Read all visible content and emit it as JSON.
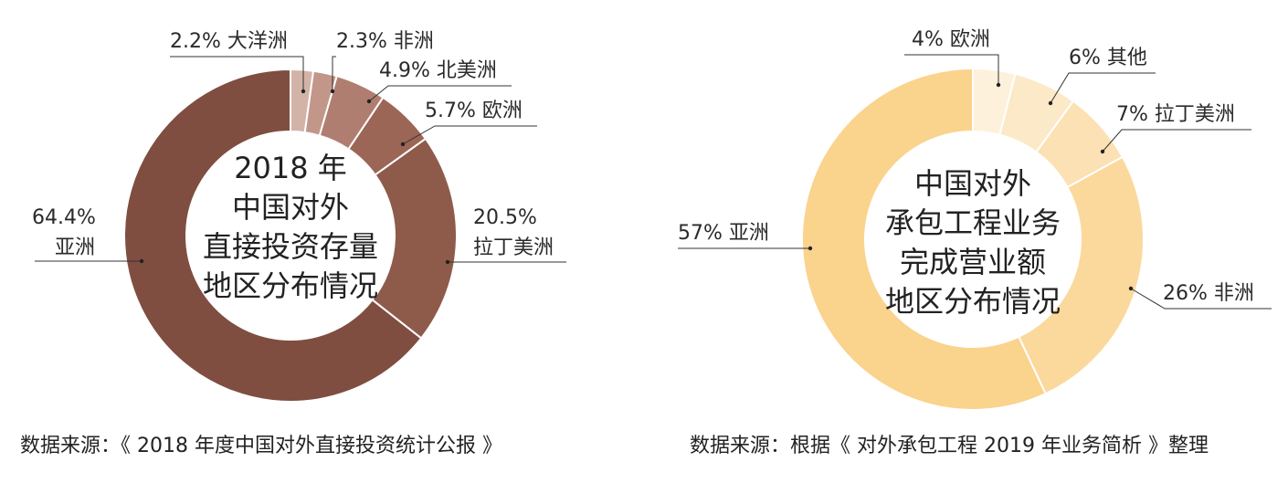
{
  "chart_data": [
    {
      "type": "pie",
      "donut": true,
      "title_lines": [
        "2018 年",
        "中国对外",
        "直接投资存量",
        "地区分布情况"
      ],
      "slices": [
        {
          "name": "大洋洲",
          "value": 2.2,
          "label": "2.2%",
          "color": "#d3b3a8"
        },
        {
          "name": "非洲",
          "value": 2.3,
          "label": "2.3%",
          "color": "#c2978a"
        },
        {
          "name": "北美洲",
          "value": 4.9,
          "label": "4.9%",
          "color": "#b07e70"
        },
        {
          "name": "欧洲",
          "value": 5.7,
          "label": "5.7%",
          "color": "#9c6656"
        },
        {
          "name": "拉丁美洲",
          "value": 20.5,
          "label": "20.5%",
          "color": "#8e5b4b"
        },
        {
          "name": "亚洲",
          "value": 64.4,
          "label": "64.4%",
          "color": "#7f4e40"
        }
      ],
      "source": "数据来源：《 2018 年度中国对外直接投资统计公报 》"
    },
    {
      "type": "pie",
      "donut": true,
      "title_lines": [
        "中国对外",
        "承包工程业务",
        "完成营业额",
        "地区分布情况"
      ],
      "slices": [
        {
          "name": "欧洲",
          "value": 4,
          "label": "4%",
          "color": "#fdf1db"
        },
        {
          "name": "其他",
          "value": 6,
          "label": "6%",
          "color": "#fce9c7"
        },
        {
          "name": "拉丁美洲",
          "value": 7,
          "label": "7%",
          "color": "#fbe1b3"
        },
        {
          "name": "非洲",
          "value": 26,
          "label": "26%",
          "color": "#fbd99d"
        },
        {
          "name": "亚洲",
          "value": 57,
          "label": "57%",
          "color": "#fad38c"
        }
      ],
      "source": "数据来源：根据《 对外承包工程 2019 年业务简析 》整理"
    }
  ]
}
